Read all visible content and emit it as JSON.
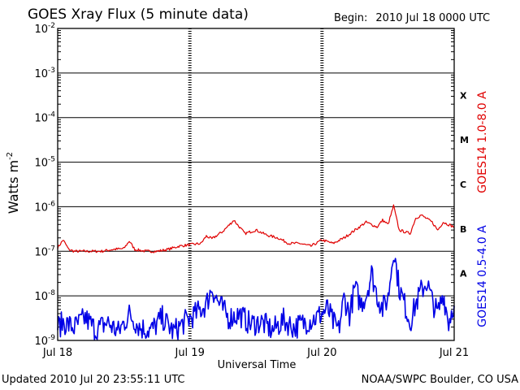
{
  "header": {
    "title": "GOES Xray Flux (5 minute data)",
    "begin_label": "Begin:",
    "begin_value": "2010 Jul 18 0000 UTC"
  },
  "footer": {
    "updated": "Updated 2010 Jul 20 23:55:11 UTC",
    "credit": "NOAA/SWPC Boulder, CO USA"
  },
  "chart_data": {
    "type": "line",
    "xlabel": "Universal Time",
    "ylabel": "Watts m",
    "ylabel_superscript": "-2",
    "yscale": "log",
    "ylim": [
      1e-09,
      0.01
    ],
    "xlim": [
      "2010-07-18 00:00",
      "2010-07-21 00:00"
    ],
    "x_ticks": [
      "Jul 18",
      "Jul 19",
      "Jul 20",
      "Jul 21"
    ],
    "y_ticks": [
      {
        "value": 0.01,
        "base": "10",
        "exp": "-2"
      },
      {
        "value": 0.001,
        "base": "10",
        "exp": "-3"
      },
      {
        "value": 0.0001,
        "base": "10",
        "exp": "-4"
      },
      {
        "value": 1e-05,
        "base": "10",
        "exp": "-5"
      },
      {
        "value": 1e-06,
        "base": "10",
        "exp": "-6"
      },
      {
        "value": 1e-07,
        "base": "10",
        "exp": "-7"
      },
      {
        "value": 1e-08,
        "base": "10",
        "exp": "-8"
      },
      {
        "value": 1e-09,
        "base": "10",
        "exp": "-9"
      }
    ],
    "flare_classes": [
      {
        "label": "X",
        "low": 0.0001,
        "high": 0.001
      },
      {
        "label": "M",
        "low": 1e-05,
        "high": 0.0001
      },
      {
        "label": "C",
        "low": 1e-06,
        "high": 1e-05
      },
      {
        "label": "B",
        "low": 1e-07,
        "high": 1e-06
      },
      {
        "label": "A",
        "low": 1e-08,
        "high": 1e-07
      }
    ],
    "grid": "horizontal at each decade, dashed vertical at day boundaries",
    "series": [
      {
        "name": "GOES14 1.0-8.0 A",
        "color": "#e00000",
        "x_hours": [
          0,
          1,
          2,
          3,
          4,
          6,
          8,
          10,
          12,
          13,
          14,
          16,
          18,
          20,
          22,
          24,
          26,
          27,
          28,
          30,
          32,
          33,
          34,
          36,
          38,
          40,
          42,
          44,
          46,
          48,
          50,
          52,
          54,
          56,
          58,
          59,
          60,
          61,
          62,
          64,
          65,
          66,
          68,
          69,
          70,
          72
        ],
        "values": [
          1.2e-07,
          1.8e-07,
          1.1e-07,
          1e-07,
          1e-07,
          1e-07,
          1e-07,
          1.1e-07,
          1.15e-07,
          1.7e-07,
          1.1e-07,
          1e-07,
          1e-07,
          1.1e-07,
          1.3e-07,
          1.4e-07,
          1.5e-07,
          2.2e-07,
          1.9e-07,
          2.8e-07,
          5e-07,
          3.5e-07,
          2.5e-07,
          3e-07,
          2.3e-07,
          2e-07,
          1.5e-07,
          1.5e-07,
          1.3e-07,
          1.8e-07,
          1.5e-07,
          2e-07,
          3e-07,
          4.5e-07,
          3.5e-07,
          5e-07,
          4e-07,
          1.05e-06,
          3e-07,
          2.5e-07,
          5.5e-07,
          6.5e-07,
          4.5e-07,
          3e-07,
          4.5e-07,
          3.5e-07
        ]
      },
      {
        "name": "GOES14 0.5-4.0 A",
        "color": "#0000e6",
        "x_hours": [
          0,
          1,
          3,
          5,
          7,
          9,
          11,
          13,
          15,
          17,
          19,
          21,
          23,
          25,
          27,
          28,
          29,
          31,
          33,
          35,
          37,
          39,
          41,
          43,
          45,
          47,
          49,
          50,
          51,
          52,
          53,
          54,
          55,
          56,
          57,
          58,
          59,
          60,
          61,
          62,
          63,
          64,
          65,
          66,
          67,
          68,
          69,
          70,
          71,
          72
        ],
        "values": [
          1.5e-09,
          2e-09,
          1.5e-09,
          2.5e-09,
          1.3e-09,
          2e-09,
          1.2e-09,
          3e-09,
          1.5e-09,
          1.3e-09,
          2.5e-09,
          1.2e-09,
          2e-09,
          3e-09,
          5e-09,
          1.2e-08,
          6e-09,
          2.5e-09,
          3e-09,
          1.8e-09,
          2e-09,
          1.3e-09,
          2.2e-09,
          1.5e-09,
          2e-09,
          2.5e-09,
          4e-09,
          2e-09,
          1.3e-09,
          7e-09,
          3e-09,
          1.2e-08,
          5e-09,
          8e-09,
          2.5e-08,
          8e-09,
          4e-09,
          7e-09,
          9e-08,
          1.2e-08,
          5e-09,
          2e-09,
          5e-09,
          1e-08,
          1.6e-08,
          6e-09,
          3e-09,
          9e-09,
          2e-09,
          6e-09
        ]
      }
    ]
  }
}
